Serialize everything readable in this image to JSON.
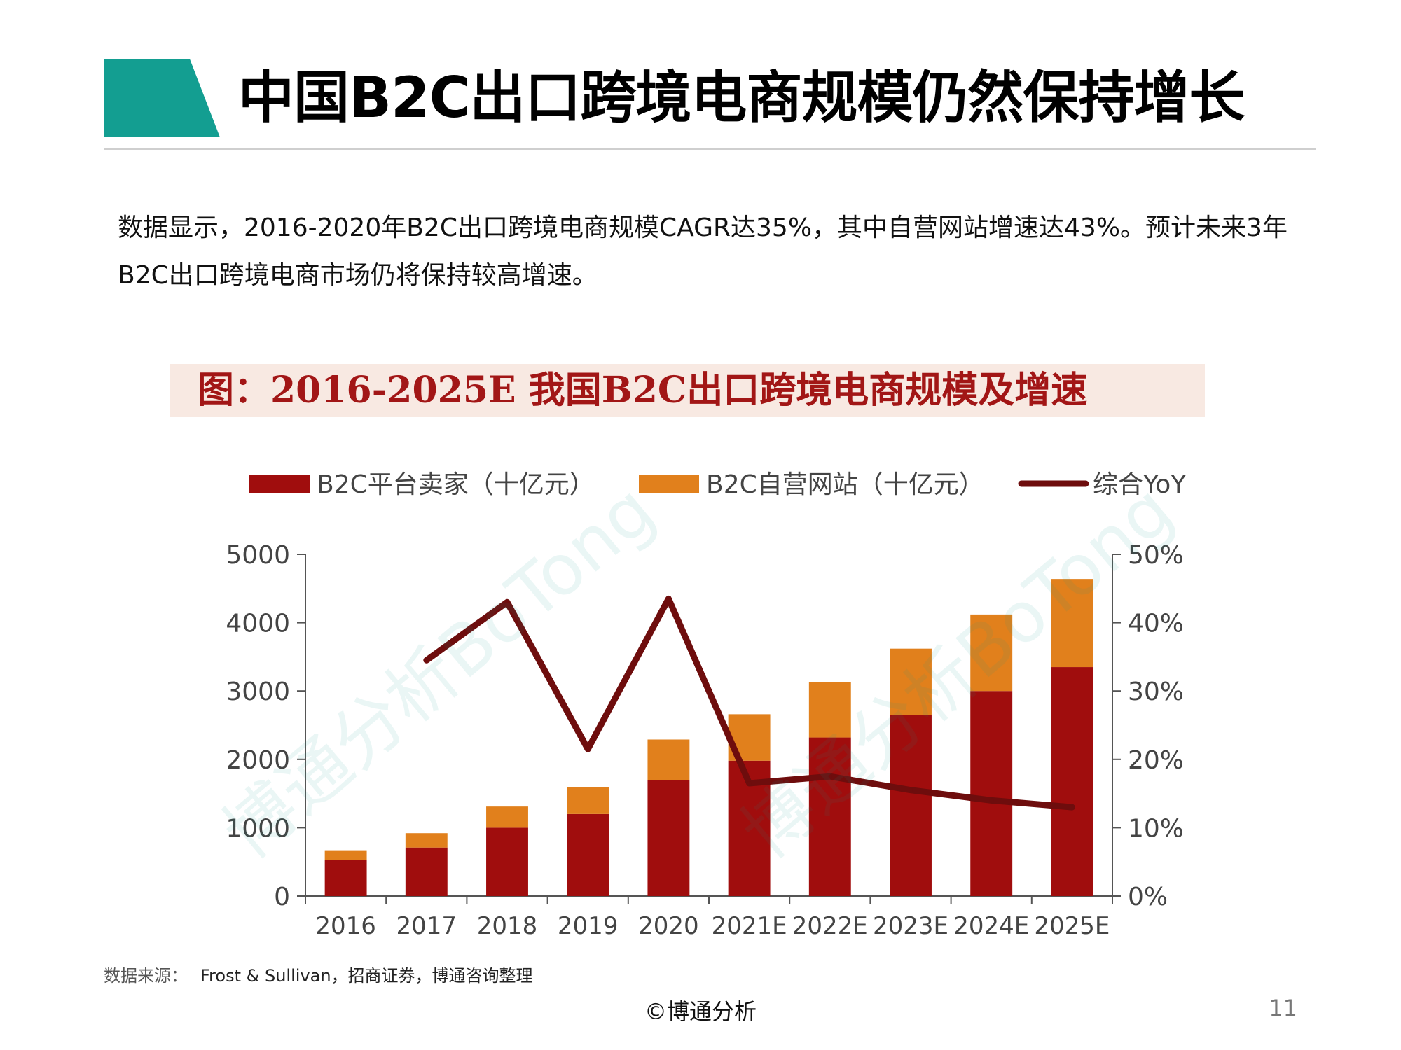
{
  "slide": {
    "title": "中国B2C出口跨境电商规模仍然保持增长",
    "intro": "数据显示，2016-2020年B2C出口跨境电商规模CAGR达35%，其中自营网站增速达43%。预计未来3年B2C出口跨境电商市场仍将保持较高增速。",
    "source_label": "数据来源：",
    "source_text": "Frost & Sullivan，招商证券，博通咨询整理",
    "copyright": "©博通分析",
    "page_number": "11",
    "watermark": "博通分析BoTong",
    "accent_color": "#139e91"
  },
  "chart_data": {
    "type": "bar",
    "stacked": true,
    "title": "图：2016-2025E 我国B2C出口跨境电商规模及增速",
    "categories": [
      "2016",
      "2017",
      "2018",
      "2019",
      "2020",
      "2021E",
      "2022E",
      "2023E",
      "2024E",
      "2025E"
    ],
    "series": [
      {
        "name": "B2C平台卖家（十亿元）",
        "kind": "bar",
        "axis": "left",
        "color": "#a00d0d",
        "values": [
          530,
          710,
          1000,
          1200,
          1700,
          1980,
          2320,
          2650,
          3000,
          3350
        ]
      },
      {
        "name": "B2C自营网站（十亿元）",
        "kind": "bar",
        "axis": "left",
        "color": "#e1801c",
        "values": [
          140,
          210,
          310,
          390,
          590,
          680,
          810,
          970,
          1120,
          1290
        ]
      },
      {
        "name": "综合YoY",
        "kind": "line",
        "axis": "right",
        "color": "#6e0d0d",
        "values": [
          null,
          34.5,
          43,
          21.5,
          43.5,
          16.5,
          17.5,
          15.5,
          14,
          13
        ]
      }
    ],
    "y_left": {
      "min": 0,
      "max": 5000,
      "ticks": [
        "0",
        "1000",
        "2000",
        "3000",
        "4000",
        "5000"
      ]
    },
    "y_right": {
      "min": 0,
      "max": 50,
      "ticks": [
        "0%",
        "10%",
        "20%",
        "30%",
        "40%",
        "50%"
      ]
    },
    "legend_position": "top",
    "grid": false
  }
}
